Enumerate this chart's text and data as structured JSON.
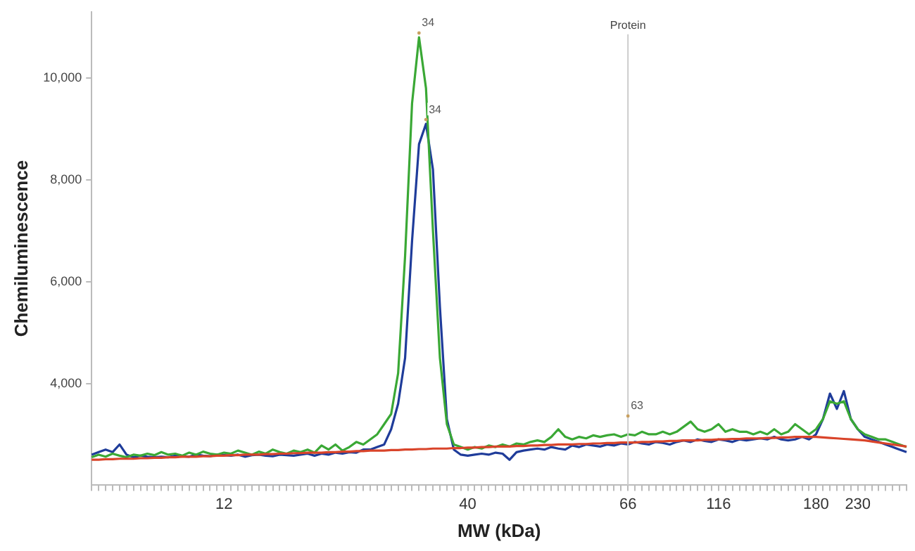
{
  "chart_data": {
    "type": "line",
    "xlabel": "MW (kDa)",
    "ylabel": "Chemiluminescence",
    "categories": [
      null,
      null,
      null,
      null,
      null,
      null,
      null,
      null,
      null,
      null,
      null,
      null,
      null,
      null,
      null,
      null,
      null,
      null,
      null,
      "12",
      null,
      null,
      null,
      null,
      null,
      null,
      null,
      null,
      null,
      null,
      null,
      null,
      null,
      null,
      null,
      null,
      null,
      null,
      null,
      null,
      null,
      null,
      null,
      null,
      null,
      null,
      null,
      null,
      null,
      null,
      null,
      null,
      null,
      null,
      "40",
      null,
      null,
      null,
      null,
      null,
      null,
      null,
      null,
      null,
      null,
      null,
      null,
      null,
      null,
      null,
      null,
      null,
      null,
      null,
      null,
      null,
      null,
      "66",
      null,
      null,
      null,
      null,
      null,
      null,
      null,
      null,
      null,
      null,
      null,
      null,
      "116",
      null,
      null,
      null,
      null,
      null,
      null,
      null,
      null,
      null,
      null,
      null,
      null,
      null,
      "180",
      null,
      null,
      null,
      null,
      null,
      "230",
      null,
      null,
      null,
      null,
      null,
      null,
      null
    ],
    "ylim": [
      2000,
      11300
    ],
    "yticks": [
      {
        "value": 4000,
        "label": "4,000"
      },
      {
        "value": 6000,
        "label": "6,000"
      },
      {
        "value": 8000,
        "label": "8,000"
      },
      {
        "value": 10000,
        "label": "10,000"
      }
    ],
    "grid": false,
    "legend": false,
    "marker": "none",
    "line_style": "solid",
    "ref_lines": [
      {
        "axis": "x",
        "value": "66",
        "label": "Protein",
        "color": "#cccccc"
      }
    ],
    "annotations": [
      "34",
      "34",
      "63"
    ],
    "series": [
      {
        "color": "#d9442a",
        "values": [
          2500,
          2500,
          2510,
          2510,
          2520,
          2520,
          2520,
          2530,
          2530,
          2540,
          2540,
          2550,
          2550,
          2560,
          2560,
          2560,
          2570,
          2570,
          2580,
          2580,
          2590,
          2590,
          2600,
          2600,
          2600,
          2610,
          2610,
          2620,
          2620,
          2630,
          2630,
          2640,
          2640,
          2640,
          2650,
          2650,
          2660,
          2660,
          2670,
          2670,
          2680,
          2680,
          2680,
          2690,
          2690,
          2700,
          2700,
          2710,
          2710,
          2720,
          2720,
          2720,
          2730,
          2730,
          2740,
          2740,
          2750,
          2750,
          2760,
          2760,
          2760,
          2770,
          2770,
          2780,
          2780,
          2790,
          2790,
          2800,
          2800,
          2800,
          2810,
          2810,
          2820,
          2820,
          2830,
          2830,
          2840,
          2840,
          2840,
          2850,
          2850,
          2860,
          2860,
          2870,
          2870,
          2880,
          2880,
          2880,
          2890,
          2890,
          2900,
          2900,
          2910,
          2910,
          2920,
          2920,
          2920,
          2930,
          2930,
          2940,
          2940,
          2950,
          2950,
          2950,
          2950,
          2940,
          2930,
          2920,
          2910,
          2900,
          2890,
          2880,
          2860,
          2840,
          2820,
          2800,
          2780,
          2760
        ]
      },
      {
        "color": "#3aa835",
        "values": [
          2550,
          2600,
          2560,
          2620,
          2580,
          2550,
          2600,
          2580,
          2620,
          2590,
          2650,
          2600,
          2620,
          2580,
          2640,
          2600,
          2660,
          2620,
          2600,
          2640,
          2620,
          2680,
          2640,
          2600,
          2660,
          2620,
          2700,
          2650,
          2620,
          2680,
          2650,
          2700,
          2640,
          2780,
          2700,
          2800,
          2680,
          2750,
          2850,
          2800,
          2900,
          3000,
          3200,
          3400,
          4200,
          6500,
          9500,
          10800,
          9800,
          7000,
          4500,
          3200,
          2800,
          2750,
          2700,
          2750,
          2720,
          2780,
          2750,
          2800,
          2760,
          2820,
          2800,
          2850,
          2880,
          2850,
          2950,
          3100,
          2950,
          2900,
          2950,
          2920,
          2980,
          2950,
          2980,
          3000,
          2950,
          3000,
          2980,
          3050,
          3000,
          3000,
          3050,
          3000,
          3050,
          3150,
          3250,
          3100,
          3050,
          3100,
          3200,
          3050,
          3100,
          3050,
          3050,
          3000,
          3050,
          3000,
          3100,
          3000,
          3050,
          3200,
          3100,
          3000,
          3100,
          3300,
          3650,
          3600,
          3650,
          3300,
          3100,
          3000,
          2950,
          2900,
          2900,
          2850,
          2800,
          2750
        ]
      },
      {
        "color": "#1f3c9a",
        "values": [
          2600,
          2650,
          2700,
          2650,
          2800,
          2600,
          2550,
          2580,
          2560,
          2550,
          2560,
          2550,
          2580,
          2570,
          2560,
          2600,
          2580,
          2570,
          2600,
          2590,
          2580,
          2600,
          2560,
          2590,
          2600,
          2580,
          2570,
          2600,
          2590,
          2580,
          2600,
          2620,
          2580,
          2620,
          2600,
          2640,
          2620,
          2650,
          2640,
          2700,
          2700,
          2750,
          2800,
          3100,
          3600,
          4500,
          6800,
          8700,
          9100,
          8200,
          5500,
          3300,
          2700,
          2600,
          2580,
          2600,
          2620,
          2600,
          2640,
          2620,
          2500,
          2650,
          2680,
          2700,
          2720,
          2700,
          2750,
          2720,
          2700,
          2780,
          2750,
          2800,
          2780,
          2760,
          2800,
          2780,
          2820,
          2800,
          2850,
          2820,
          2800,
          2850,
          2830,
          2800,
          2850,
          2880,
          2850,
          2900,
          2870,
          2850,
          2900,
          2880,
          2850,
          2900,
          2880,
          2900,
          2920,
          2900,
          2950,
          2900,
          2880,
          2900,
          2950,
          2900,
          3000,
          3300,
          3800,
          3500,
          3850,
          3300,
          3100,
          2950,
          2900,
          2850,
          2800,
          2750,
          2700,
          2650
        ]
      }
    ]
  }
}
